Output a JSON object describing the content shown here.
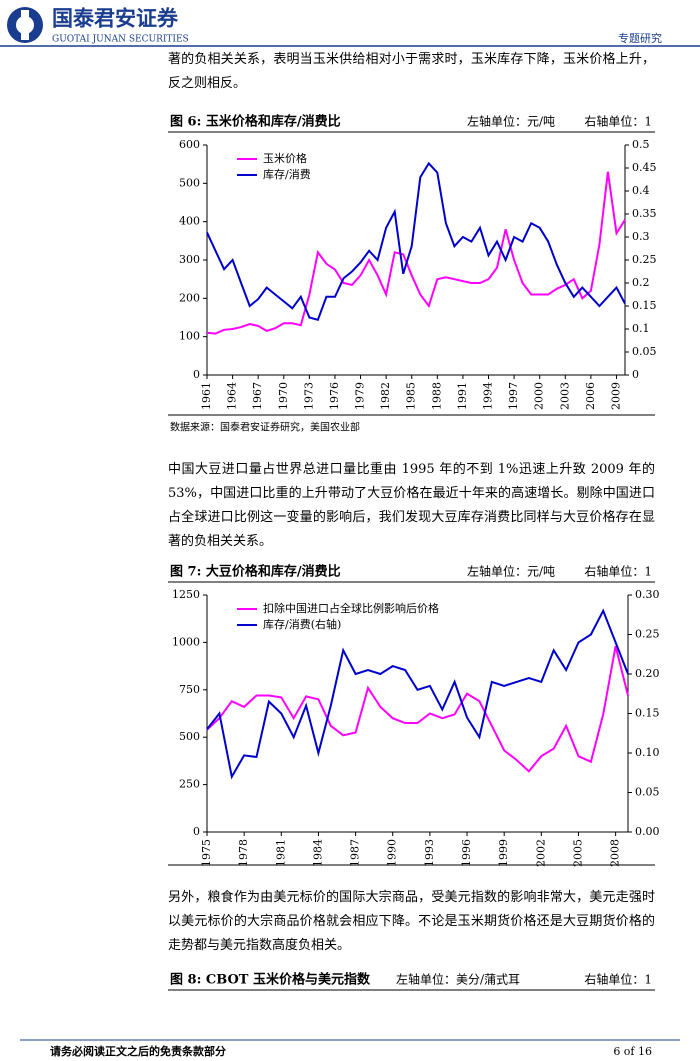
{
  "header": {
    "company": "国泰君安证券",
    "company_en": "GUOTAI JUNAN SECURITIES",
    "report_type": "专题研究"
  },
  "paragraphs": [
    "著的负相关关系，表明当玉米供给相对小于需求时，玉米库存下降，玉米价格上升，反之则相反。",
    "中国大豆进口量占世界总进口量比重由 1995 年的不到 1%迅速上升致 2009 年的 53%，中国进口比重的上升带动了大豆价格在最近十年来的高速增长。剔除中国进口占全球进口比例这一变量的影响后，我们发现大豆库存消费比同样与大豆价格存在显著的负相关关系。",
    "另外，粮食作为由美元标价的国际大宗商品，受美元指数的影响非常大，美元走强时以美元标价的大宗商品价格就会相应下降。不论是玉米期货价格还是大豆期货价格的走势都与美元指数高度负相关。"
  ],
  "figure_8": {
    "title": "图 8: CBOT 玉米价格与美元指数",
    "y_unit": "左轴单位：美分/蒲式耳",
    "y2_unit": "右轴单位：1"
  },
  "footer": {
    "disclaimer": "请务必阅读正文之后的免责条款部分",
    "page": "6 of 16"
  },
  "chart_data": [
    {
      "type": "line",
      "title": "图 6: 玉米价格和库存/消费比",
      "y_unit": "左轴单位：元/吨",
      "y2_unit": "右轴单位：1",
      "source": "数据来源：国泰君安证券研究，美国农业部",
      "x": [
        1961,
        1962,
        1963,
        1964,
        1965,
        1966,
        1967,
        1968,
        1969,
        1970,
        1971,
        1972,
        1973,
        1974,
        1975,
        1976,
        1977,
        1978,
        1979,
        1980,
        1981,
        1982,
        1983,
        1984,
        1985,
        1986,
        1987,
        1988,
        1989,
        1990,
        1991,
        1992,
        1993,
        1994,
        1995,
        1996,
        1997,
        1998,
        1999,
        2000,
        2001,
        2002,
        2003,
        2004,
        2005,
        2006,
        2007,
        2008,
        2009,
        2010
      ],
      "xlim": [
        1961,
        2010
      ],
      "xticks": [
        1961,
        1964,
        1967,
        1970,
        1973,
        1976,
        1979,
        1982,
        1985,
        1988,
        1991,
        1994,
        1997,
        2000,
        2003,
        2006,
        2009
      ],
      "ylim": [
        0,
        600
      ],
      "yticks": [
        0,
        100,
        200,
        300,
        400,
        500,
        600
      ],
      "y2lim": [
        0,
        0.5
      ],
      "y2ticks": [
        0,
        0.05,
        0.1,
        0.15,
        0.2,
        0.25,
        0.3,
        0.35,
        0.4,
        0.45,
        0.5
      ],
      "legend": "top-left",
      "series": [
        {
          "name": "玉米价格",
          "color": "#ff00ff",
          "values": [
            110,
            108,
            118,
            120,
            125,
            133,
            128,
            115,
            122,
            135,
            135,
            130,
            210,
            320,
            290,
            275,
            240,
            235,
            260,
            300,
            260,
            210,
            320,
            315,
            260,
            210,
            180,
            250,
            255,
            250,
            245,
            240,
            240,
            250,
            280,
            380,
            300,
            240,
            210,
            210,
            210,
            225,
            235,
            250,
            200,
            220,
            340,
            530,
            370,
            405
          ]
        },
        {
          "name": "库存/消费",
          "color": "#0000cc",
          "axis": "y2",
          "values": [
            0.31,
            0.27,
            0.23,
            0.25,
            0.2,
            0.15,
            0.165,
            0.19,
            0.175,
            0.16,
            0.145,
            0.17,
            0.125,
            0.12,
            0.17,
            0.17,
            0.21,
            0.225,
            0.245,
            0.27,
            0.25,
            0.32,
            0.355,
            0.22,
            0.28,
            0.43,
            0.46,
            0.44,
            0.33,
            0.28,
            0.3,
            0.29,
            0.32,
            0.26,
            0.29,
            0.25,
            0.3,
            0.29,
            0.33,
            0.32,
            0.29,
            0.24,
            0.2,
            0.17,
            0.19,
            0.17,
            0.15,
            0.17,
            0.19,
            0.155
          ]
        }
      ]
    },
    {
      "type": "line",
      "title": "图 7: 大豆价格和库存/消费比",
      "y_unit": "左轴单位：元/吨",
      "y2_unit": "右轴单位：1",
      "x": [
        1975,
        1976,
        1977,
        1978,
        1979,
        1980,
        1981,
        1982,
        1983,
        1984,
        1985,
        1986,
        1987,
        1988,
        1989,
        1990,
        1991,
        1992,
        1993,
        1994,
        1995,
        1996,
        1997,
        1998,
        1999,
        2000,
        2001,
        2002,
        2003,
        2004,
        2005,
        2006,
        2007,
        2008,
        2009
      ],
      "xlim": [
        1975,
        2009
      ],
      "xticks": [
        1975,
        1978,
        1981,
        1984,
        1987,
        1990,
        1993,
        1996,
        1999,
        2002,
        2005,
        2008
      ],
      "ylim": [
        0,
        1250
      ],
      "yticks": [
        0,
        250,
        500,
        750,
        1000,
        1250
      ],
      "y2lim": [
        0,
        0.3
      ],
      "y2ticks": [
        {
          "value": 0,
          "label": "0.00"
        },
        {
          "value": 0.05,
          "label": "0.05"
        },
        {
          "value": 0.1,
          "label": "0.10"
        },
        {
          "value": 0.15,
          "label": "0.15"
        },
        {
          "value": 0.2,
          "label": "0.20"
        },
        {
          "value": 0.25,
          "label": "0.25"
        },
        {
          "value": 0.3,
          "label": "0.30"
        }
      ],
      "legend": "top-left",
      "series": [
        {
          "name": "扣除中国进口占全球比例影响后价格",
          "color": "#ff00ff",
          "values": [
            540,
            600,
            690,
            660,
            720,
            720,
            710,
            600,
            715,
            700,
            560,
            510,
            525,
            760,
            660,
            600,
            575,
            575,
            625,
            600,
            620,
            730,
            690,
            560,
            430,
            380,
            320,
            400,
            440,
            560,
            400,
            370,
            620,
            980,
            720
          ]
        },
        {
          "name": "库存/消费(右轴)",
          "color": "#0000cc",
          "axis": "y2",
          "values": [
            0.13,
            0.15,
            0.07,
            0.097,
            0.095,
            0.165,
            0.15,
            0.12,
            0.16,
            0.1,
            0.16,
            0.23,
            0.2,
            0.205,
            0.2,
            0.21,
            0.205,
            0.18,
            0.185,
            0.155,
            0.19,
            0.145,
            0.12,
            0.19,
            0.185,
            0.19,
            0.195,
            0.19,
            0.23,
            0.205,
            0.24,
            0.25,
            0.28,
            0.24,
            0.2
          ]
        }
      ]
    }
  ]
}
